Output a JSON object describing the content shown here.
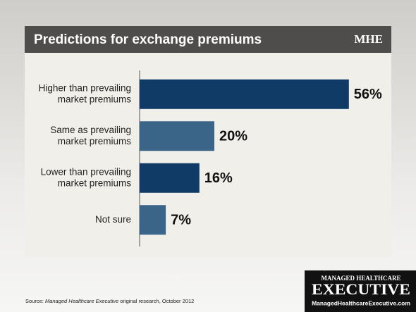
{
  "chart_data": {
    "type": "bar",
    "orientation": "horizontal",
    "title": "Predictions for exchange premiums",
    "badge": "MHE",
    "categories": [
      [
        "Higher than prevailing",
        "market premiums"
      ],
      [
        "Same as prevailing",
        "market premiums"
      ],
      [
        "Lower than prevailing",
        "market premiums"
      ],
      [
        "Not sure"
      ]
    ],
    "values": [
      56,
      20,
      16,
      7
    ],
    "value_labels": [
      "56%",
      "20%",
      "16%",
      "7%"
    ],
    "colors": [
      "#0f3b66",
      "#3b6489",
      "#0f3b66",
      "#3b6489"
    ],
    "xlim": [
      0,
      60
    ]
  },
  "source": {
    "prefix": "Source: ",
    "italic": "Managed Healthcare Executive",
    "suffix": " original research, October 2012"
  },
  "logo": {
    "line1": "MANAGED HEALTHCARE",
    "line2": "EXECUTIVE",
    "url": "ManagedHealthcareExecutive.com"
  }
}
